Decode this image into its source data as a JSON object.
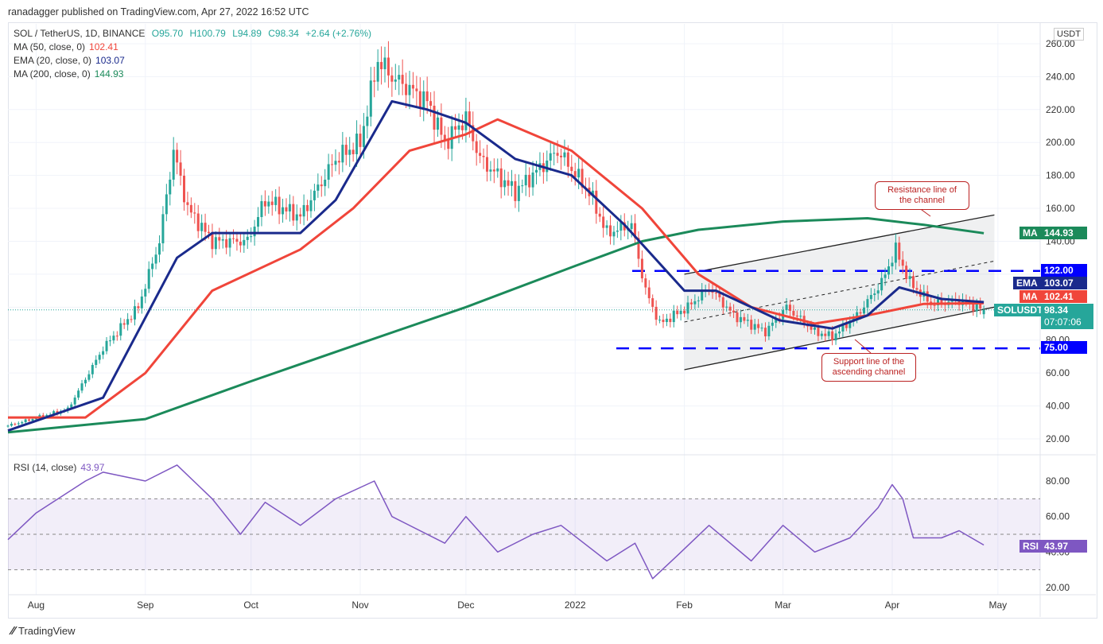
{
  "publish": "ranadagger published on TradingView.com, Apr 27, 2022 16:52 UTC",
  "legend": {
    "symbol": "SOL / TetherUS, 1D, BINANCE",
    "o": "O95.70",
    "h": "H100.79",
    "l": "L94.89",
    "c": "C98.34",
    "chg": "+2.64 (+2.76%)",
    "ma50": "MA (50, close, 0)",
    "ma50_v": "102.41",
    "ema20": "EMA (20, close, 0)",
    "ema20_v": "103.07",
    "ma200": "MA (200, close, 0)",
    "ma200_v": "144.93",
    "rsi": "RSI (14, close)",
    "rsi_v": "43.97"
  },
  "currency": "USDT",
  "footer": "TradingView",
  "annotations": {
    "resistance": "Resistance line of the channel",
    "support": "Support line of the ascending channel"
  },
  "tags": {
    "ma200": [
      "MA",
      "144.93"
    ],
    "l122": "122.00",
    "ema": [
      "EMA",
      "103.07"
    ],
    "ma50": [
      "MA",
      "102.41"
    ],
    "last": [
      "SOLUSDT",
      "98.34",
      "07:07:06"
    ],
    "l75": "75.00",
    "rsi": [
      "RSI",
      "43.97"
    ]
  },
  "colors": {
    "up": "#26a69a",
    "down": "#ef5350",
    "ema": "#1a2a8c",
    "ma50": "#f0453a",
    "ma200": "#1b8a5a",
    "level": "#0000ff",
    "rsi": "#7e57c2"
  },
  "chart_data": {
    "type": "candlestick",
    "title": "SOL / TetherUS, 1D, BINANCE",
    "ylim": [
      20,
      260
    ],
    "yticks": [
      "20.00",
      "40.00",
      "60.00",
      "80.00",
      "100.00",
      "120.00",
      "140.00",
      "160.00",
      "180.00",
      "200.00",
      "220.00",
      "240.00",
      "260.00"
    ],
    "xticks": [
      [
        "Aug",
        "2021-08-01"
      ],
      [
        "Sep",
        "2021-09-01"
      ],
      [
        "Oct",
        "2021-10-01"
      ],
      [
        "Nov",
        "2021-11-01"
      ],
      [
        "Dec",
        "2021-12-01"
      ],
      [
        "2022",
        "2022-01-01"
      ],
      [
        "Feb",
        "2022-02-01"
      ],
      [
        "Mar",
        "2022-03-01"
      ],
      [
        "Apr",
        "2022-04-01"
      ],
      [
        "May",
        "2022-05-01"
      ]
    ],
    "close": [
      [
        "2021-07-24",
        28
      ],
      [
        "2021-08-10",
        38
      ],
      [
        "2021-08-20",
        75
      ],
      [
        "2021-08-30",
        100
      ],
      [
        "2021-09-05",
        140
      ],
      [
        "2021-09-09",
        195
      ],
      [
        "2021-09-13",
        160
      ],
      [
        "2021-09-20",
        140
      ],
      [
        "2021-09-30",
        140
      ],
      [
        "2021-10-05",
        165
      ],
      [
        "2021-10-15",
        155
      ],
      [
        "2021-10-25",
        190
      ],
      [
        "2021-11-01",
        200
      ],
      [
        "2021-11-06",
        250
      ],
      [
        "2021-11-10",
        240
      ],
      [
        "2021-11-20",
        225
      ],
      [
        "2021-11-25",
        200
      ],
      [
        "2021-12-01",
        215
      ],
      [
        "2021-12-05",
        190
      ],
      [
        "2021-12-15",
        170
      ],
      [
        "2021-12-27",
        195
      ],
      [
        "2022-01-05",
        170
      ],
      [
        "2022-01-10",
        145
      ],
      [
        "2022-01-17",
        150
      ],
      [
        "2022-01-21",
        110
      ],
      [
        "2022-01-25",
        90
      ],
      [
        "2022-02-02",
        100
      ],
      [
        "2022-02-08",
        112
      ],
      [
        "2022-02-15",
        95
      ],
      [
        "2022-02-24",
        85
      ],
      [
        "2022-03-02",
        100
      ],
      [
        "2022-03-10",
        85
      ],
      [
        "2022-03-15",
        82
      ],
      [
        "2022-03-22",
        95
      ],
      [
        "2022-03-29",
        115
      ],
      [
        "2022-04-02",
        135
      ],
      [
        "2022-04-06",
        115
      ],
      [
        "2022-04-12",
        102
      ],
      [
        "2022-04-20",
        104
      ],
      [
        "2022-04-27",
        98.34
      ]
    ],
    "ema20": [
      [
        "2021-07-24",
        25
      ],
      [
        "2021-08-20",
        45
      ],
      [
        "2021-09-10",
        130
      ],
      [
        "2021-09-20",
        145
      ],
      [
        "2021-10-15",
        145
      ],
      [
        "2021-10-25",
        165
      ],
      [
        "2021-11-10",
        225
      ],
      [
        "2021-11-20",
        220
      ],
      [
        "2021-12-01",
        212
      ],
      [
        "2021-12-15",
        190
      ],
      [
        "2021-12-31",
        180
      ],
      [
        "2022-01-15",
        150
      ],
      [
        "2022-02-01",
        110
      ],
      [
        "2022-02-10",
        110
      ],
      [
        "2022-02-28",
        92
      ],
      [
        "2022-03-15",
        87
      ],
      [
        "2022-03-25",
        95
      ],
      [
        "2022-04-03",
        112
      ],
      [
        "2022-04-15",
        105
      ],
      [
        "2022-04-27",
        103.07
      ]
    ],
    "ma50": [
      [
        "2021-07-24",
        33
      ],
      [
        "2021-08-15",
        33
      ],
      [
        "2021-09-01",
        60
      ],
      [
        "2021-09-20",
        110
      ],
      [
        "2021-10-15",
        135
      ],
      [
        "2021-10-30",
        160
      ],
      [
        "2021-11-15",
        195
      ],
      [
        "2021-12-01",
        205
      ],
      [
        "2021-12-10",
        214
      ],
      [
        "2021-12-31",
        195
      ],
      [
        "2022-01-20",
        160
      ],
      [
        "2022-02-05",
        120
      ],
      [
        "2022-02-20",
        100
      ],
      [
        "2022-03-10",
        90
      ],
      [
        "2022-03-25",
        95
      ],
      [
        "2022-04-10",
        102
      ],
      [
        "2022-04-27",
        102.41
      ]
    ],
    "ma200": [
      [
        "2021-07-24",
        24
      ],
      [
        "2021-09-01",
        32
      ],
      [
        "2021-10-01",
        55
      ],
      [
        "2021-11-01",
        78
      ],
      [
        "2021-12-01",
        100
      ],
      [
        "2022-01-01",
        125
      ],
      [
        "2022-01-20",
        140
      ],
      [
        "2022-02-05",
        147
      ],
      [
        "2022-03-01",
        152
      ],
      [
        "2022-03-25",
        154
      ],
      [
        "2022-04-10",
        150
      ],
      [
        "2022-04-27",
        144.93
      ]
    ],
    "levels": [
      122,
      75
    ],
    "channel": {
      "support": [
        [
          "2022-02-01",
          62
        ],
        [
          "2022-04-30",
          100
        ]
      ],
      "resistance": [
        [
          "2022-02-01",
          120
        ],
        [
          "2022-04-30",
          156
        ]
      ]
    },
    "rsi": {
      "ylim": [
        20,
        80
      ],
      "yticks": [
        "20.00",
        "40.00",
        "60.00",
        "80.00"
      ],
      "band": [
        30,
        70
      ],
      "values": [
        [
          "2021-07-24",
          47
        ],
        [
          "2021-08-01",
          62
        ],
        [
          "2021-08-15",
          80
        ],
        [
          "2021-08-20",
          85
        ],
        [
          "2021-09-01",
          80
        ],
        [
          "2021-09-10",
          89
        ],
        [
          "2021-09-20",
          70
        ],
        [
          "2021-09-28",
          50
        ],
        [
          "2021-10-05",
          68
        ],
        [
          "2021-10-15",
          55
        ],
        [
          "2021-10-25",
          70
        ],
        [
          "2021-11-05",
          80
        ],
        [
          "2021-11-10",
          60
        ],
        [
          "2021-11-25",
          45
        ],
        [
          "2021-12-01",
          60
        ],
        [
          "2021-12-10",
          40
        ],
        [
          "2021-12-20",
          50
        ],
        [
          "2021-12-28",
          55
        ],
        [
          "2022-01-10",
          35
        ],
        [
          "2022-01-18",
          45
        ],
        [
          "2022-01-23",
          25
        ],
        [
          "2022-01-30",
          38
        ],
        [
          "2022-02-08",
          55
        ],
        [
          "2022-02-20",
          35
        ],
        [
          "2022-03-01",
          55
        ],
        [
          "2022-03-10",
          40
        ],
        [
          "2022-03-20",
          48
        ],
        [
          "2022-03-28",
          65
        ],
        [
          "2022-04-01",
          78
        ],
        [
          "2022-04-04",
          70
        ],
        [
          "2022-04-07",
          48
        ],
        [
          "2022-04-15",
          48
        ],
        [
          "2022-04-20",
          52
        ],
        [
          "2022-04-27",
          43.97
        ]
      ]
    }
  }
}
